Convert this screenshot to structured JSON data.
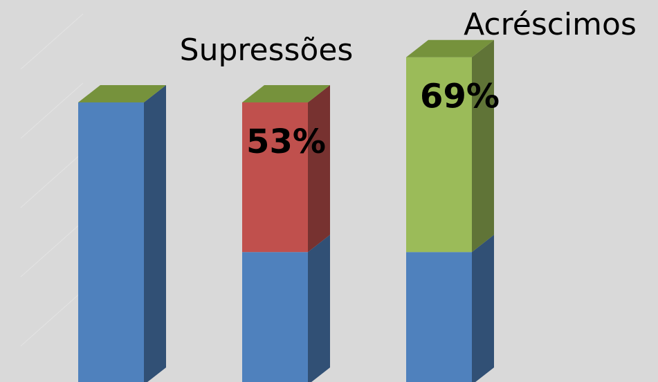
{
  "chart_data": {
    "type": "bar3d-stacked",
    "categories": [
      null,
      "Supressões",
      "Acréscimos"
    ],
    "series": [
      {
        "color": "#4f81bd",
        "values": [
          100,
          47,
          47
        ]
      },
      {
        "color": "#c0504d",
        "values": [
          null,
          53,
          null
        ],
        "value_labels": [
          null,
          "53%",
          null
        ]
      },
      {
        "color": "#9bbb59",
        "values": [
          null,
          null,
          69
        ],
        "value_labels": [
          null,
          null,
          "69%"
        ]
      }
    ]
  }
}
